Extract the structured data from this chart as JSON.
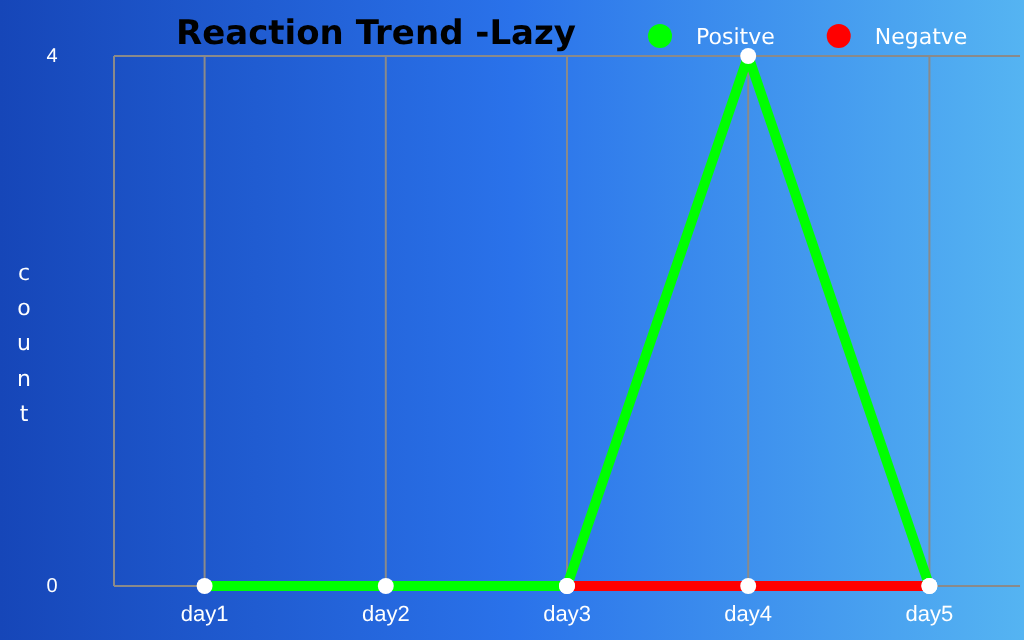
{
  "chart_data": {
    "type": "line",
    "title": "Reaction Trend -Lazy",
    "ylabel": "count",
    "categories": [
      "day1",
      "day2",
      "day3",
      "day4",
      "day5"
    ],
    "series": [
      {
        "name": "Negatve",
        "color": "#ff0000",
        "values": [
          null,
          null,
          0,
          0,
          0
        ]
      },
      {
        "name": "Positve",
        "color": "#00ff00",
        "values": [
          0,
          0,
          0,
          4,
          0
        ]
      }
    ],
    "ylim": [
      0,
      4
    ],
    "yticks": [
      0,
      4
    ],
    "grid": true,
    "legend": "top right",
    "marker": "circle",
    "line_style": "solid"
  }
}
